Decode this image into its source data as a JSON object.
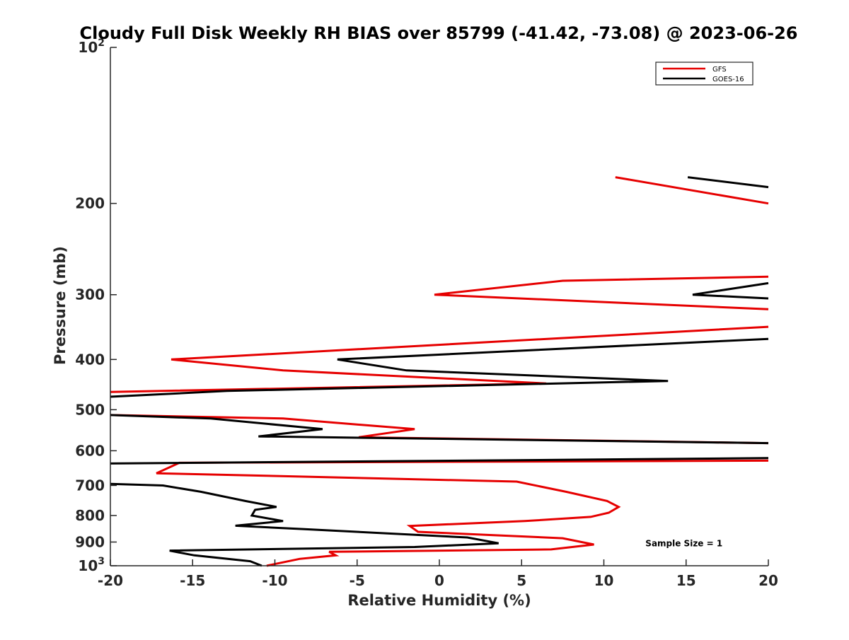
{
  "chart_data": {
    "type": "line",
    "title": "Cloudy Full Disk Weekly RH BIAS over 85799 (-41.42, -73.08) @ 2023-06-26",
    "xlabel": "Relative Humidity (%)",
    "ylabel": "Pressure (mb)",
    "xlim": [
      -20,
      20
    ],
    "ylim": [
      100,
      1000
    ],
    "y_scale": "log",
    "y_reversed": true,
    "x_ticks": [
      {
        "value": -20,
        "label": "-20"
      },
      {
        "value": -15,
        "label": "-15"
      },
      {
        "value": -10,
        "label": "-10"
      },
      {
        "value": -5,
        "label": "-5"
      },
      {
        "value": 0,
        "label": "0"
      },
      {
        "value": 5,
        "label": "5"
      },
      {
        "value": 10,
        "label": "10"
      },
      {
        "value": 15,
        "label": "15"
      },
      {
        "value": 20,
        "label": "20"
      }
    ],
    "y_ticks": [
      {
        "value": 100,
        "label": "10",
        "sup": "2"
      },
      {
        "value": 200,
        "label": "200"
      },
      {
        "value": 300,
        "label": "300"
      },
      {
        "value": 400,
        "label": "400"
      },
      {
        "value": 500,
        "label": "500"
      },
      {
        "value": 600,
        "label": "600"
      },
      {
        "value": 700,
        "label": "700"
      },
      {
        "value": 800,
        "label": "800"
      },
      {
        "value": 900,
        "label": "900"
      },
      {
        "value": 1000,
        "label": "10",
        "sup": "3"
      }
    ],
    "grid": false,
    "legend_position": "top-right",
    "series": [
      {
        "name": "GFS",
        "color": "#e60000",
        "segments": [
          [
            [
              10.7,
              178
            ],
            [
              20,
              200
            ]
          ],
          [
            [
              20,
              277
            ],
            [
              7.5,
              282
            ],
            [
              -0.3,
              300
            ],
            [
              20,
              320
            ]
          ],
          [
            [
              20,
              346
            ],
            [
              -16.3,
              400
            ],
            [
              -9.5,
              420
            ],
            [
              6.5,
              445
            ],
            [
              -20,
              462
            ]
          ],
          [
            [
              -20,
              512
            ],
            [
              -9.5,
              520
            ],
            [
              -1.5,
              545
            ],
            [
              -4.9,
              565
            ],
            [
              20,
              580
            ]
          ],
          [
            [
              20,
              627
            ],
            [
              -15.8,
              633
            ],
            [
              -17.2,
              663
            ],
            [
              4.7,
              688
            ],
            [
              7.7,
              720
            ],
            [
              10.2,
              750
            ],
            [
              10.9,
              770
            ],
            [
              10.3,
              790
            ],
            [
              9.2,
              805
            ],
            [
              5.2,
              820
            ],
            [
              -1.8,
              838
            ],
            [
              -1.3,
              860
            ],
            [
              7.5,
              885
            ],
            [
              9.4,
              910
            ],
            [
              6.8,
              930
            ],
            [
              -6.7,
              940
            ],
            [
              -6.3,
              955
            ],
            [
              -8.5,
              970
            ],
            [
              -10.5,
              1000
            ]
          ]
        ]
      },
      {
        "name": "GOES-16",
        "color": "#000000",
        "segments": [
          [
            [
              15.1,
              178
            ],
            [
              20,
              186
            ]
          ],
          [
            [
              20,
              285
            ],
            [
              15.4,
              300
            ],
            [
              20,
              305
            ]
          ],
          [
            [
              20,
              365
            ],
            [
              -6.2,
              400
            ],
            [
              -2.0,
              420
            ],
            [
              13.9,
              440
            ],
            [
              -12.9,
              460
            ],
            [
              -20,
              472
            ]
          ],
          [
            [
              -20,
              512
            ],
            [
              -13.9,
              520
            ],
            [
              -7.1,
              545
            ],
            [
              -11.0,
              563
            ],
            [
              20,
              580
            ]
          ],
          [
            [
              20,
              620
            ],
            [
              -20,
              635
            ]
          ],
          [
            [
              -20,
              695
            ],
            [
              -16.8,
              700
            ],
            [
              -14.5,
              720
            ],
            [
              -11.8,
              750
            ],
            [
              -9.9,
              770
            ],
            [
              -11.2,
              780
            ],
            [
              -11.4,
              800
            ],
            [
              -9.5,
              820
            ],
            [
              -12.4,
              837
            ],
            [
              -8.2,
              850
            ],
            [
              1.7,
              882
            ],
            [
              3.6,
              905
            ],
            [
              -1.5,
              920
            ],
            [
              -16.4,
              935
            ],
            [
              -14.9,
              955
            ],
            [
              -11.5,
              980
            ],
            [
              -10.8,
              1000
            ]
          ]
        ]
      }
    ],
    "annotations": [
      {
        "text": "Sample Size = 1",
        "x": 15,
        "y": 900
      }
    ]
  }
}
